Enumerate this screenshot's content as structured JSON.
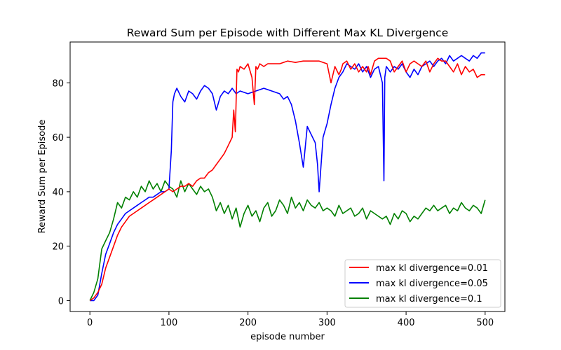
{
  "chart_data": {
    "type": "line",
    "title": "Reward Sum per Episode with Different Max KL Divergence",
    "xlabel": "episode number",
    "ylabel": "Reward Sum per Episode",
    "xlim": [
      -25,
      525
    ],
    "ylim": [
      -4,
      95
    ],
    "xticks": [
      0,
      100,
      200,
      300,
      400,
      500
    ],
    "yticks": [
      0,
      20,
      40,
      60,
      80
    ],
    "grid": false,
    "legend_position": "lower-right",
    "series": [
      {
        "name": "max kl divergence=0.01",
        "color": "#ff0000",
        "x": [
          0,
          5,
          10,
          15,
          20,
          25,
          30,
          35,
          40,
          45,
          50,
          55,
          60,
          65,
          70,
          75,
          80,
          85,
          90,
          95,
          100,
          105,
          110,
          115,
          120,
          125,
          130,
          135,
          140,
          145,
          150,
          155,
          160,
          165,
          170,
          175,
          180,
          182,
          184,
          186,
          188,
          190,
          195,
          200,
          205,
          208,
          210,
          212,
          215,
          220,
          225,
          230,
          240,
          250,
          260,
          270,
          280,
          290,
          300,
          305,
          310,
          315,
          318,
          320,
          325,
          330,
          335,
          340,
          345,
          350,
          352,
          355,
          360,
          365,
          370,
          375,
          380,
          385,
          390,
          395,
          400,
          405,
          410,
          415,
          420,
          425,
          430,
          435,
          440,
          445,
          450,
          455,
          460,
          465,
          470,
          475,
          480,
          485,
          490,
          495,
          500
        ],
        "values": [
          0,
          1,
          3,
          6,
          12,
          16,
          20,
          24,
          27,
          29,
          31,
          32,
          33,
          34,
          35,
          36,
          37,
          38,
          39,
          40,
          41,
          40,
          41,
          42,
          42,
          43,
          42,
          44,
          45,
          45,
          47,
          48,
          50,
          52,
          54,
          57,
          60,
          70,
          62,
          85,
          84,
          86,
          85,
          87,
          82,
          72,
          86,
          85,
          87,
          86,
          87,
          87,
          87,
          88,
          87.5,
          88,
          88,
          88,
          87,
          80,
          86,
          83,
          85,
          87,
          88,
          85,
          87,
          84,
          86,
          84,
          86,
          83,
          88,
          89,
          89,
          89,
          88,
          84,
          86,
          88,
          84,
          87,
          88,
          87,
          86,
          88,
          84,
          87,
          89,
          88,
          88,
          86,
          84,
          87,
          83,
          86,
          84,
          85,
          82,
          83,
          83
        ]
      },
      {
        "name": "max kl divergence=0.05",
        "color": "#0000ff",
        "x": [
          0,
          5,
          10,
          15,
          20,
          25,
          30,
          35,
          40,
          45,
          50,
          55,
          60,
          65,
          70,
          75,
          80,
          85,
          90,
          95,
          100,
          103,
          105,
          107,
          110,
          115,
          120,
          125,
          130,
          135,
          140,
          145,
          150,
          155,
          160,
          165,
          170,
          175,
          180,
          185,
          190,
          200,
          210,
          220,
          230,
          240,
          245,
          250,
          255,
          260,
          265,
          270,
          275,
          280,
          285,
          288,
          290,
          295,
          300,
          305,
          310,
          315,
          320,
          325,
          330,
          335,
          340,
          345,
          350,
          355,
          360,
          365,
          370,
          372,
          373,
          375,
          380,
          385,
          390,
          395,
          400,
          405,
          410,
          415,
          420,
          425,
          430,
          435,
          440,
          445,
          450,
          455,
          460,
          465,
          470,
          475,
          480,
          485,
          490,
          495,
          500
        ],
        "values": [
          0,
          0,
          2,
          10,
          17,
          21,
          25,
          28,
          30,
          32,
          33,
          34,
          35,
          36,
          37,
          38,
          38,
          39,
          40,
          40,
          41,
          55,
          73,
          76,
          78,
          75,
          73,
          77,
          76,
          74,
          77,
          79,
          78,
          76,
          70,
          75,
          77,
          76,
          78,
          76,
          77,
          76,
          77,
          78,
          77,
          76,
          74,
          75,
          72,
          66,
          58,
          49,
          64,
          61,
          58,
          50,
          40,
          60,
          65,
          72,
          78,
          82,
          84,
          87,
          86,
          85,
          87,
          84,
          86,
          82,
          85,
          86,
          80,
          44,
          82,
          86,
          84,
          86,
          85,
          87,
          84,
          82,
          85,
          83,
          86,
          87,
          88,
          86,
          88,
          89,
          87,
          90,
          88,
          89,
          90,
          89,
          88,
          90,
          89,
          91,
          91
        ]
      },
      {
        "name": "max kl divergence=0.1",
        "color": "#008000",
        "x": [
          0,
          5,
          10,
          15,
          20,
          25,
          30,
          35,
          40,
          45,
          50,
          55,
          60,
          65,
          70,
          75,
          80,
          85,
          90,
          95,
          100,
          105,
          110,
          115,
          120,
          125,
          130,
          135,
          140,
          145,
          150,
          155,
          160,
          165,
          170,
          175,
          180,
          185,
          190,
          195,
          200,
          205,
          210,
          215,
          220,
          225,
          230,
          235,
          240,
          245,
          250,
          255,
          260,
          265,
          270,
          275,
          280,
          285,
          290,
          295,
          300,
          305,
          310,
          315,
          320,
          325,
          330,
          335,
          340,
          345,
          350,
          355,
          360,
          365,
          370,
          375,
          380,
          385,
          390,
          395,
          400,
          405,
          410,
          415,
          420,
          425,
          430,
          435,
          440,
          445,
          450,
          455,
          460,
          465,
          470,
          475,
          480,
          485,
          490,
          495,
          500
        ],
        "values": [
          0,
          3,
          8,
          19,
          22,
          25,
          30,
          36,
          34,
          38,
          37,
          40,
          38,
          42,
          40,
          44,
          41,
          43,
          40,
          44,
          42,
          41,
          38,
          44,
          40,
          43,
          41,
          39,
          42,
          40,
          41,
          38,
          33,
          36,
          32,
          35,
          30,
          34,
          27,
          32,
          35,
          31,
          33,
          29,
          34,
          36,
          31,
          33,
          37,
          35,
          32,
          38,
          34,
          36,
          33,
          37,
          35,
          34,
          36,
          33,
          34,
          33,
          31,
          35,
          32,
          33,
          34,
          31,
          32,
          34,
          30,
          33,
          32,
          31,
          30,
          31,
          28,
          32,
          30,
          33,
          32,
          29,
          31,
          30,
          32,
          34,
          33,
          35,
          33,
          34,
          35,
          32,
          34,
          33,
          36,
          34,
          33,
          35,
          34,
          32,
          37
        ]
      }
    ]
  }
}
